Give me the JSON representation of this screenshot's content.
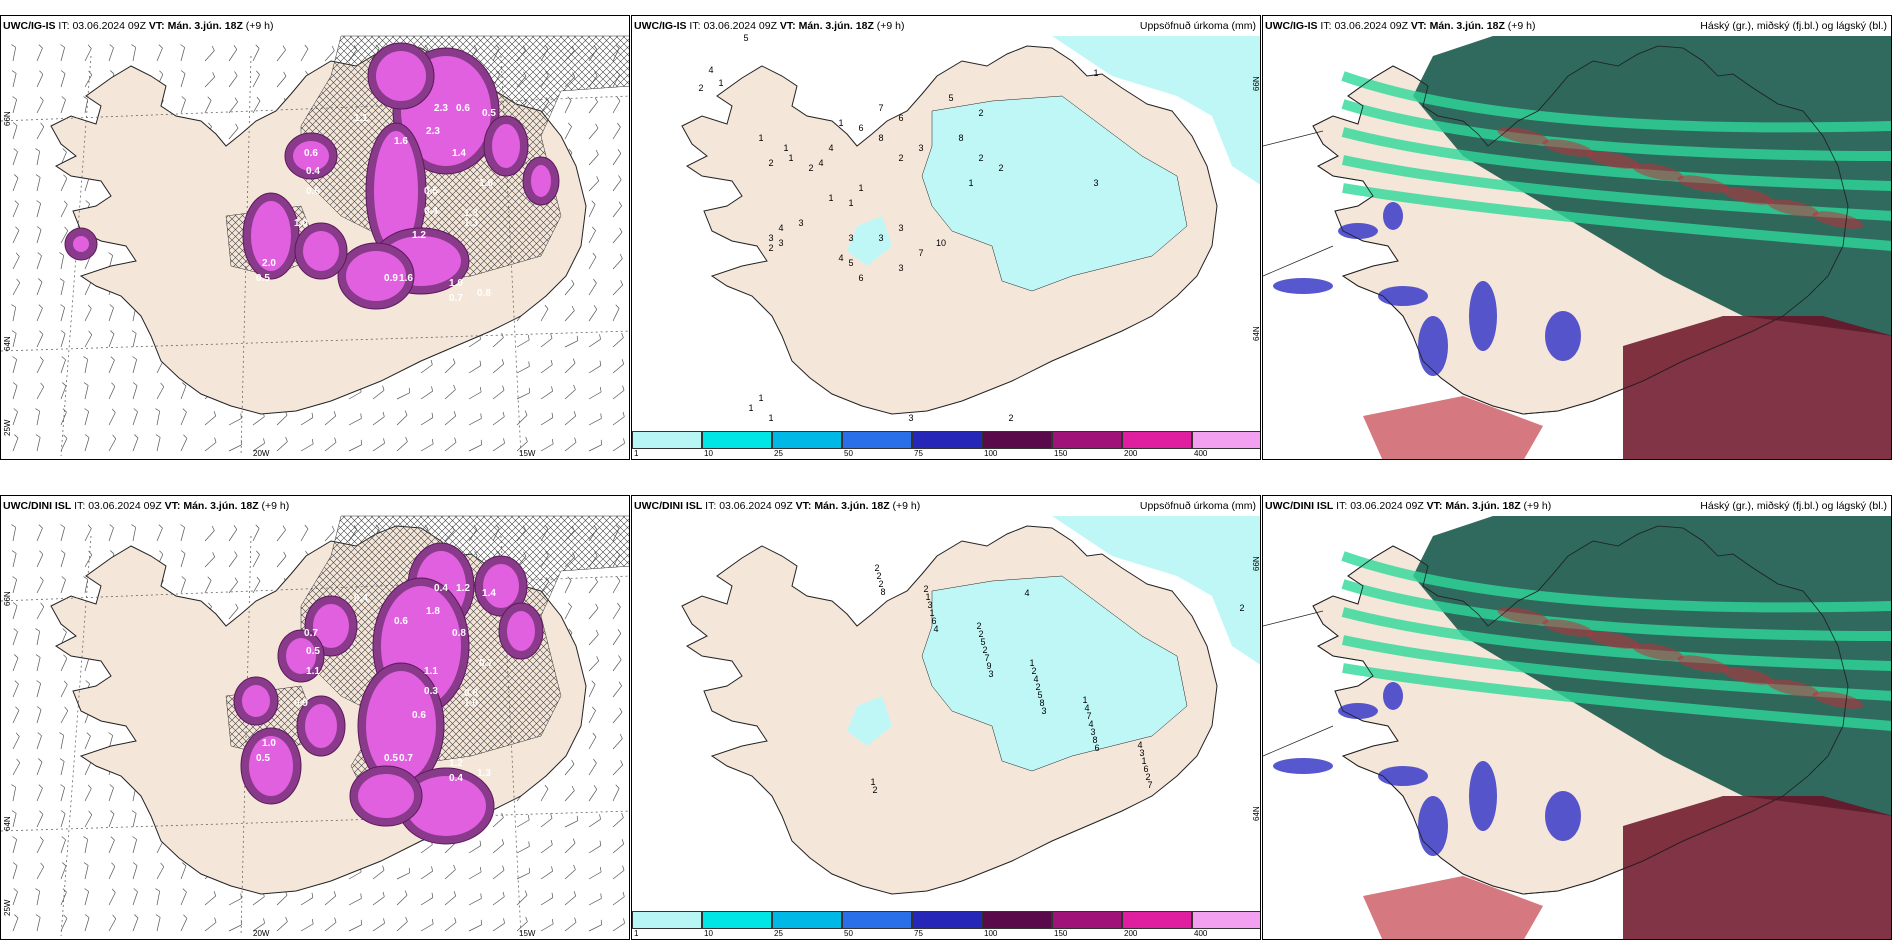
{
  "panels": [
    {
      "id": "top-left",
      "model": "UWC/IG-IS",
      "it_label": "IT:",
      "it_value": "03.06.2024 09Z",
      "vt_label": "VT:",
      "vt_value": "Mán. 3.jún. 18Z",
      "lead": "(+9 h)",
      "right_title": "",
      "axis_labels": [
        "20W",
        "15W",
        "66N",
        "64N",
        "25W"
      ],
      "values": [
        "2.3",
        "2.3",
        "1.4",
        "0.6",
        "0.5",
        "1.1",
        "1.6",
        "0.6",
        "0.4",
        "1.3",
        "0.5",
        "0.4",
        "1.2",
        "1.3",
        "0.9",
        "1.6",
        "1.0",
        "0.7",
        "0.8",
        "2.0",
        "0.5",
        "1.9",
        "0.6",
        "1.0"
      ]
    },
    {
      "id": "top-middle",
      "model": "UWC/IG-IS",
      "it_label": "IT:",
      "it_value": "03.06.2024 09Z",
      "vt_label": "VT:",
      "vt_value": "Mán. 3.jún. 18Z",
      "lead": "(+9 h)",
      "right_title": "Uppsöfnuð úrkoma (mm)",
      "axis_labels": [
        "66N",
        "64N"
      ],
      "values": [
        "4",
        "5",
        "1",
        "2",
        "1",
        "1",
        "2",
        "1",
        "2",
        "1",
        "4",
        "4",
        "6",
        "7",
        "6",
        "8",
        "3",
        "2",
        "8",
        "5",
        "2",
        "2",
        "1",
        "2",
        "1",
        "1",
        "1",
        "3",
        "4",
        "3",
        "3",
        "2",
        "3",
        "4",
        "5",
        "6",
        "3",
        "3",
        "10",
        "7",
        "3",
        "3",
        "1",
        "1",
        "1",
        "3",
        "2",
        "1",
        "3"
      ]
    },
    {
      "id": "top-right",
      "model": "UWC/IG-IS",
      "it_label": "IT:",
      "it_value": "03.06.2024 09Z",
      "vt_label": "VT:",
      "vt_value": "Mán. 3.jún. 18Z",
      "lead": "(+9 h)",
      "right_title": "Háský (gr.), miðský (fj.bl.) og lágský (bl.)",
      "axis_labels": [],
      "values": []
    },
    {
      "id": "bottom-left",
      "model": "UWC/DINI ISL",
      "it_label": "IT:",
      "it_value": "03.06.2024 09Z",
      "vt_label": "VT:",
      "vt_value": "Mán. 3.jún. 18Z",
      "lead": "(+9 h)",
      "right_title": "",
      "axis_labels": [
        "20W",
        "15W",
        "66N",
        "64N",
        "25W"
      ],
      "values": [
        "0.4",
        "1.8",
        "0.8",
        "1.2",
        "1.4",
        "0.4",
        "0.6",
        "0.7",
        "0.5",
        "0.8",
        "1.1",
        "0.3",
        "0.6",
        "1.0",
        "0.5",
        "0.7",
        "1.2",
        "0.4",
        "1.3",
        "1.0",
        "0.5",
        "0.7",
        "1.1",
        "0.9"
      ]
    },
    {
      "id": "bottom-middle",
      "model": "UWC/DINI ISL",
      "it_label": "IT:",
      "it_value": "03.06.2024 09Z",
      "vt_label": "VT:",
      "vt_value": "Mán. 3.jún. 18Z",
      "lead": "(+9 h)",
      "right_title": "Uppsöfnuð úrkoma (mm)",
      "axis_labels": [
        "66N",
        "64N"
      ],
      "values": [
        "4",
        "2",
        "4",
        "3",
        "3",
        "6",
        "7",
        "8",
        "4",
        "9",
        "8",
        "8",
        "2",
        "2",
        "6",
        "7",
        "5",
        "3",
        "6",
        "2",
        "1",
        "2",
        "2",
        "4",
        "1",
        "2",
        "3",
        "5",
        "4",
        "7",
        "3",
        "2",
        "1",
        "2",
        "2",
        "4",
        "4",
        "1",
        "2",
        "2",
        "1",
        "1"
      ]
    },
    {
      "id": "bottom-right",
      "model": "UWC/DINI ISL",
      "it_label": "IT:",
      "it_value": "03.06.2024 09Z",
      "vt_label": "VT:",
      "vt_value": "Mán. 3.jún. 18Z",
      "lead": "(+9 h)",
      "right_title": "Háský (gr.), miðský (fj.bl.) og lágský (bl.)",
      "axis_labels": [],
      "values": []
    }
  ],
  "precip_legend": {
    "ticks": [
      "1",
      "10",
      "25",
      "50",
      "75",
      "100",
      "150",
      "200",
      "400"
    ],
    "colors": [
      "#b8f6f6",
      "#00e5e5",
      "#00b8e6",
      "#2a6ee8",
      "#2626b8",
      "#5a0a4a",
      "#a0147a",
      "#e01ea0",
      "#f4a0f0"
    ]
  },
  "colors": {
    "land": "#f4e6d8",
    "precip_light": "#bff7f7",
    "snow_purple": "#8a3a8a",
    "snow_pink": "#e060e0",
    "high_cloud": "#1e5c50",
    "mid_cloud": "#2ed89a",
    "low_cloud_blue": "#3a3ac8",
    "low_cloud_red": "#c0303a",
    "dark_red": "#6a1024"
  }
}
